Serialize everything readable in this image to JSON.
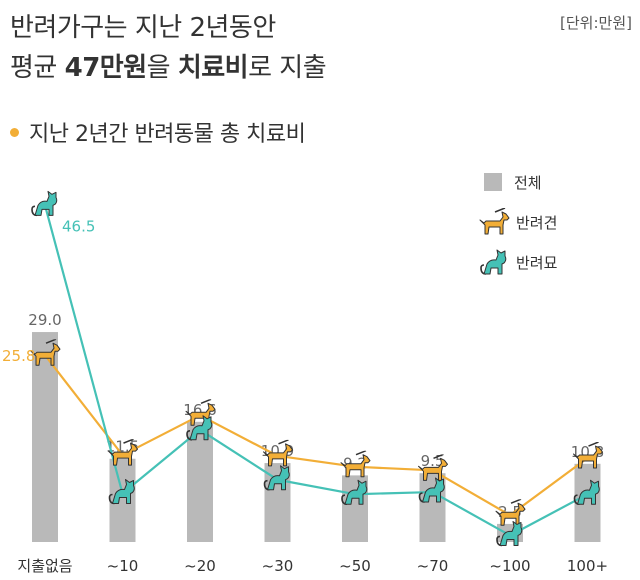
{
  "header": {
    "title_line1": "반려가구는 지난 2년동안",
    "title_line2_pre": "평균 ",
    "title_line2_bold1": "47만원",
    "title_line2_mid": "을 ",
    "title_line2_bold2": "치료비",
    "title_line2_post": "로 지출",
    "unit": "[단위:만원]"
  },
  "subtitle": "지난 2년간 반려동물 총 치료비",
  "colors": {
    "bar": "#b9b9b9",
    "dog": "#f2ae37",
    "cat": "#45c1b6",
    "accent": "#f2ae37"
  },
  "chart_data": {
    "type": "bar",
    "categories": [
      "지출없음",
      "~10",
      "~20",
      "~30",
      "~50",
      "~70",
      "~100",
      "100+"
    ],
    "series": [
      {
        "name": "전체",
        "type": "bar",
        "values": [
          29.0,
          11.5,
          16.6,
          10.9,
          9.2,
          9.5,
          2.5,
          10.8
        ],
        "labels": [
          "29.0",
          "11.5",
          "16.6",
          "10.9",
          "9.2",
          "9.5",
          "2.5",
          "10.8"
        ],
        "color": "#b9b9b9"
      },
      {
        "name": "반려견",
        "type": "line",
        "values": [
          25.8,
          12.0,
          17.5,
          11.9,
          10.4,
          9.9,
          3.7,
          11.6
        ],
        "labels": [
          "25.8"
        ],
        "color": "#f2ae37",
        "icon": "dog-icon"
      },
      {
        "name": "반려묘",
        "type": "line",
        "values": [
          46.5,
          6.7,
          15.5,
          8.6,
          6.6,
          6.9,
          0.9,
          6.6
        ],
        "labels": [
          "46.5"
        ],
        "color": "#45c1b6",
        "icon": "cat-icon"
      }
    ],
    "ylim": [
      0,
      50
    ],
    "legend_position": "top-right",
    "grid": false
  }
}
